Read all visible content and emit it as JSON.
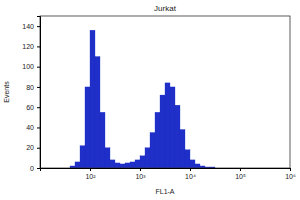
{
  "chart_data": {
    "type": "histogram",
    "title": "Jurkat",
    "xlabel": "FL1-A",
    "ylabel": "Events",
    "log": "x",
    "color": "#1f2fc8",
    "bins": [
      39.8,
      50.1,
      63.1,
      79.4,
      100,
      125.9,
      158.5,
      199.5,
      251.2,
      316.2,
      398.1,
      501.2,
      631,
      794.3,
      1000,
      1258.9,
      1584.9,
      1995.3,
      2511.9,
      3162.3,
      3981.1,
      5011.9,
      6309.6,
      7943.3,
      10000,
      12589,
      15849,
      19953,
      25119,
      31623,
      39811,
      50119,
      63096
    ],
    "values": [
      2,
      6,
      22,
      80,
      136,
      110,
      55,
      20,
      8,
      5,
      4,
      5,
      6,
      8,
      12,
      20,
      35,
      55,
      72,
      84,
      80,
      62,
      38,
      18,
      8,
      4,
      2,
      1,
      1,
      0,
      0,
      0
    ],
    "xlim": [
      10,
      1000000
    ],
    "xticks": [
      {
        "value": 100,
        "label": "10²"
      },
      {
        "value": 1000,
        "label": "10³"
      },
      {
        "value": 10000,
        "label": "10⁴"
      },
      {
        "value": 100000,
        "label": "10⁵"
      },
      {
        "value": 1000000,
        "label": "10⁶"
      }
    ],
    "ylim": [
      0,
      150
    ],
    "yticks": [
      0,
      20,
      40,
      60,
      80,
      100,
      120,
      140
    ]
  }
}
